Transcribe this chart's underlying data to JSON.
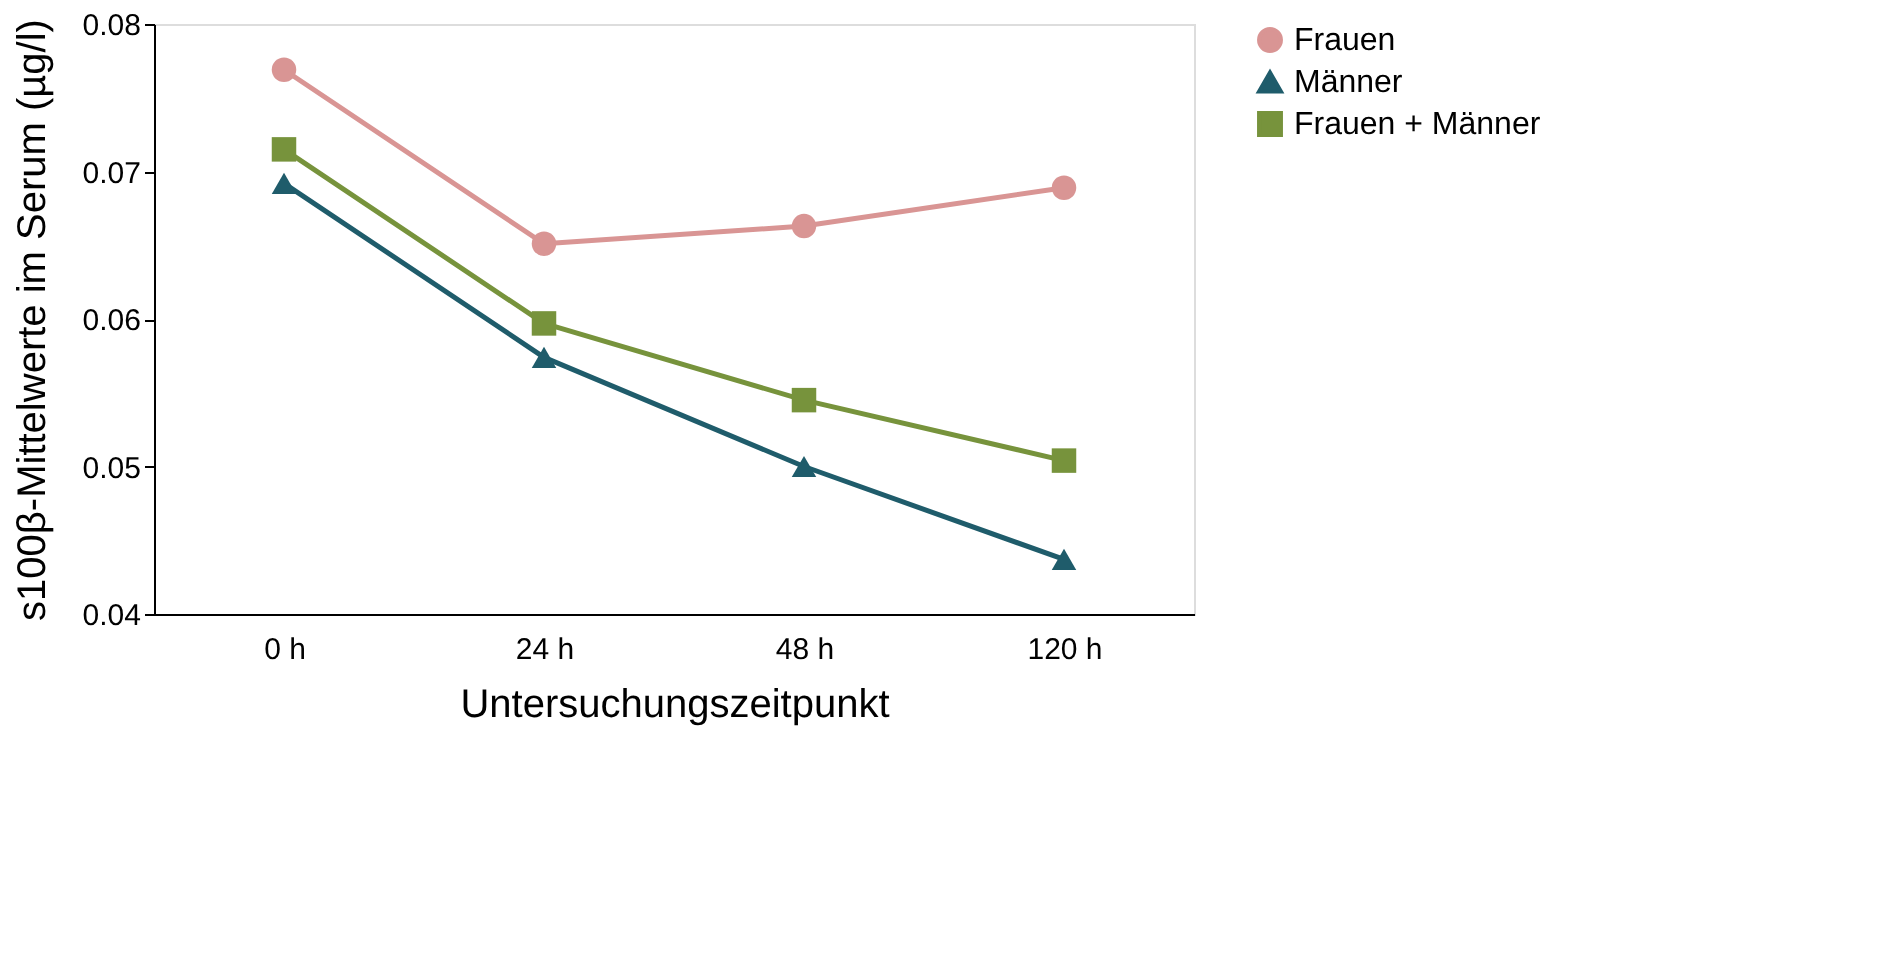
{
  "chart_data": {
    "type": "line",
    "xlabel": "Untersuchungszeitpunkt",
    "ylabel": "s100β-Mittelwerte im Serum (µg/l)",
    "categories": [
      "0 h",
      "24 h",
      "48 h",
      "120 h"
    ],
    "series": [
      {
        "name": "Frauen",
        "color": "#d99594",
        "marker": "circle",
        "values": [
          0.0769,
          0.0651,
          0.0663,
          0.0689
        ]
      },
      {
        "name": "Männer",
        "color": "#1f5c6b",
        "marker": "triangle",
        "values": [
          0.0692,
          0.0574,
          0.05,
          0.0437
        ]
      },
      {
        "name": "Frauen +  Männer",
        "color": "#77933c",
        "marker": "square",
        "values": [
          0.0715,
          0.0597,
          0.0545,
          0.0504
        ]
      }
    ],
    "ylim": [
      0.04,
      0.08
    ],
    "yticks": [
      0.04,
      0.05,
      0.06,
      0.07,
      0.08
    ],
    "grid": false,
    "legend": "right",
    "line_style": "solid"
  }
}
